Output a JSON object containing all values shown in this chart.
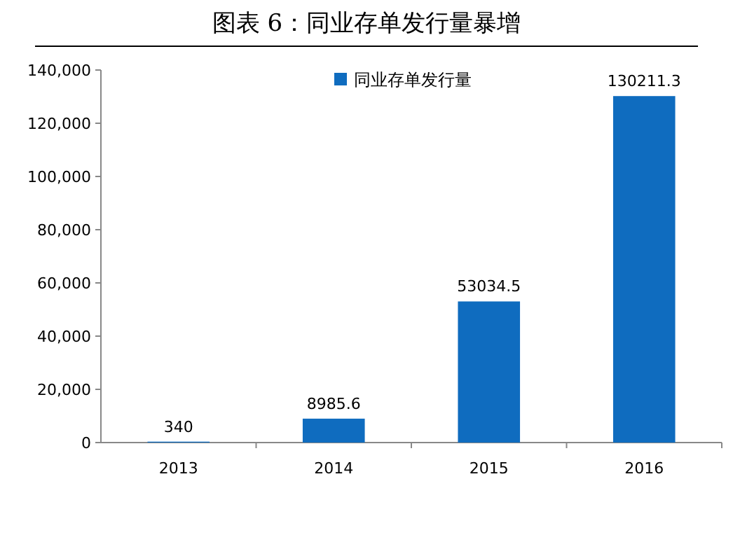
{
  "chart_data": {
    "type": "bar",
    "title": "图表 6：同业存单发行量暴增",
    "categories": [
      "2013",
      "2014",
      "2015",
      "2016"
    ],
    "series": [
      {
        "name": "同业存单发行量",
        "color": "#0f6cbf",
        "values": [
          340,
          8985.6,
          53034.5,
          130211.3
        ]
      }
    ],
    "value_labels": [
      "340",
      "8985.6",
      "53034.5",
      "130211.3"
    ],
    "ylim": [
      0,
      140000
    ],
    "yticks": [
      0,
      {
        "value": 20000,
        "label": "20,000"
      },
      {
        "value": 40000,
        "label": "40,000"
      },
      {
        "value": 60000,
        "label": "60,000"
      },
      {
        "value": 80000,
        "label": "80,000"
      },
      {
        "value": 100000,
        "label": "100,000"
      },
      {
        "value": 120000,
        "label": "120,000"
      },
      {
        "value": 140000,
        "label": "140,000"
      }
    ],
    "grid": false,
    "legend": "top"
  }
}
